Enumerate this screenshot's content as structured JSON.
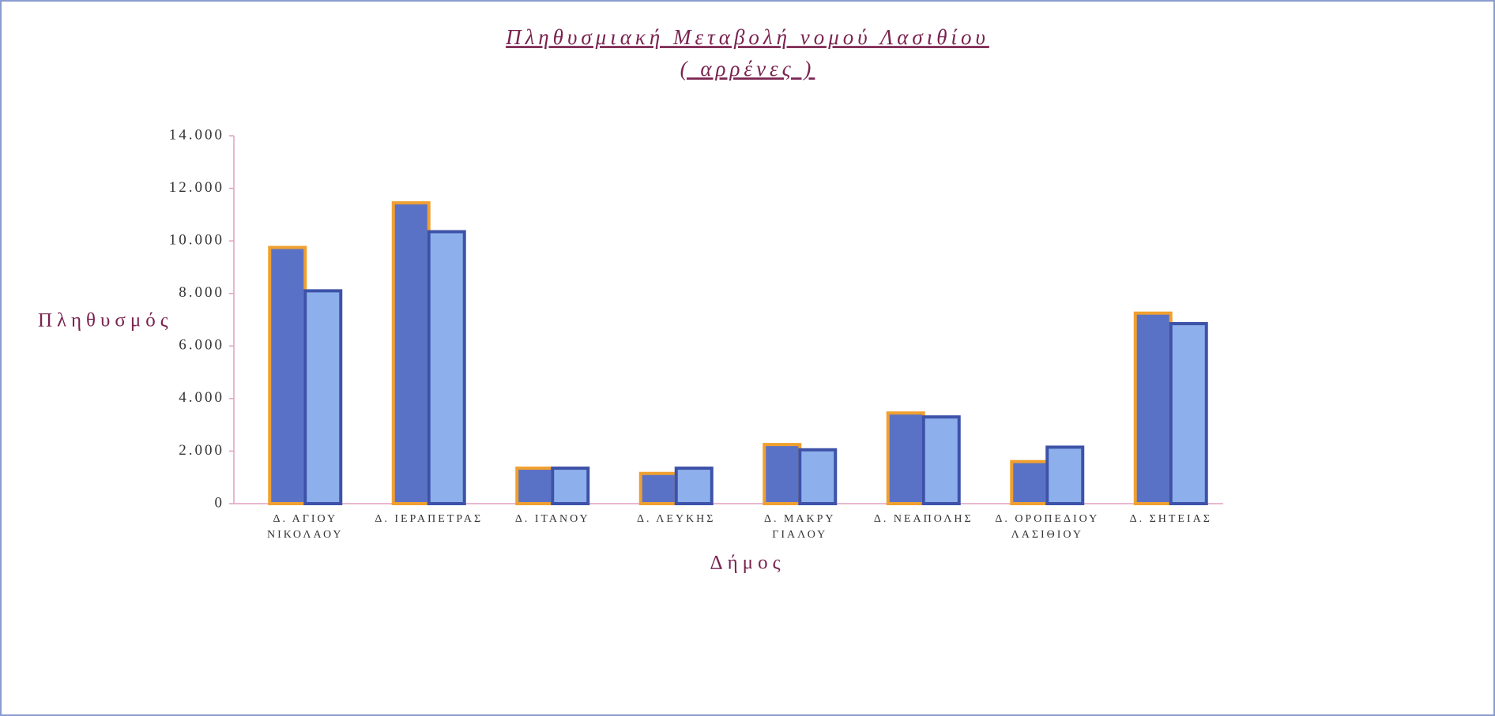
{
  "chart_data": {
    "type": "bar",
    "title": "Πληθυσμιακή Μεταβολή νομού Λασιθίου",
    "subtitle": "( αρρένες )",
    "y_label": "Πληθυσμός",
    "x_label": "Δήμος",
    "categories": [
      "Δ. ΑΓΙΟΥ ΝΙΚΟΛΑΟΥ",
      "Δ. ΙΕΡΑΠΕΤΡΑΣ",
      "Δ. ΙΤΑΝΟΥ",
      "Δ. ΛΕΥΚΗΣ",
      "Δ. ΜΑΚΡΥ ΓΙΑΛΟΥ",
      "Δ. ΝΕΑΠΟΛΗΣ",
      "Δ. ΟΡΟΠΕΔΙΟΥ ΛΑΣΙΘΙΟΥ",
      "Δ. ΣΗΤΕΙΑΣ"
    ],
    "series": [
      {
        "color": "#5a72c6",
        "border": "#f0a030",
        "values": [
          9750,
          11450,
          1350,
          1150,
          2250,
          3450,
          1600,
          7250
        ]
      },
      {
        "color": "#8db0ec",
        "border": "#3d52a8",
        "values": [
          8100,
          10350,
          1350,
          1350,
          2050,
          3300,
          2150,
          6850
        ]
      }
    ],
    "ylim": [
      0,
      14000
    ],
    "yticks": [
      0,
      {
        "value": 2000,
        "label": "2.000"
      },
      {
        "value": 4000,
        "label": "4.000"
      },
      {
        "value": 6000,
        "label": "6.000"
      },
      {
        "value": 8000,
        "label": "8.000"
      },
      {
        "value": 10000,
        "label": "10.000"
      },
      {
        "value": 12000,
        "label": "12.000"
      },
      {
        "value": 14000,
        "label": "14.000"
      }
    ]
  }
}
